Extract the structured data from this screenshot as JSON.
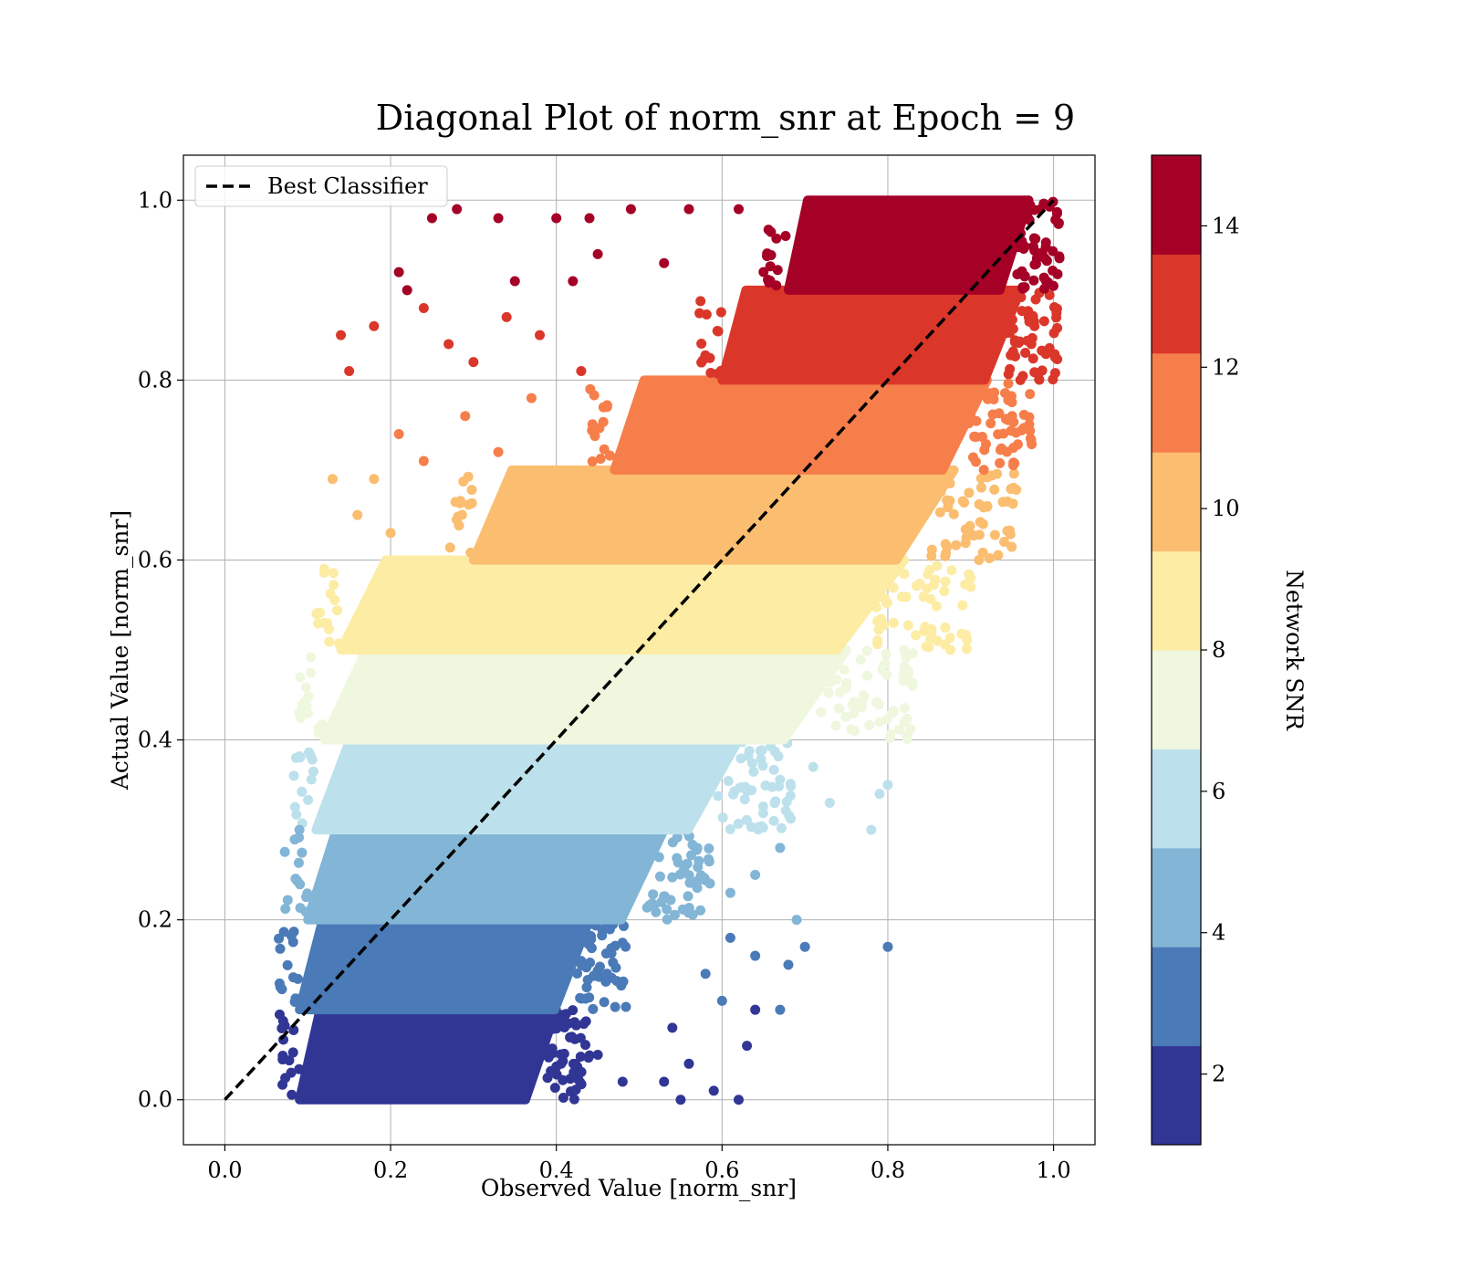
{
  "chart_data": {
    "type": "scatter",
    "title": "Diagonal Plot of norm_snr at Epoch = 9",
    "xlabel": "Observed Value [norm_snr]",
    "ylabel": "Actual Value [norm_snr]",
    "xlim": [
      -0.05,
      1.05
    ],
    "ylim": [
      -0.05,
      1.05
    ],
    "xticks": [
      "0.0",
      "0.2",
      "0.4",
      "0.6",
      "0.8",
      "1.0"
    ],
    "yticks": [
      "0.0",
      "0.2",
      "0.4",
      "0.6",
      "0.8",
      "1.0"
    ],
    "grid": true,
    "legend": {
      "position": "top-left",
      "entries": [
        "Best Classifier"
      ]
    },
    "reference_line": {
      "name": "Best Classifier",
      "style": "dashed",
      "color": "#000000",
      "x": [
        0,
        1
      ],
      "y": [
        0,
        1
      ]
    },
    "colorbar": {
      "label": "Network SNR",
      "range": [
        1,
        15
      ],
      "ticks": [
        "2",
        "4",
        "6",
        "8",
        "10",
        "12",
        "14"
      ],
      "colors": [
        "#313695",
        "#4a7ab7",
        "#82b5d6",
        "#bde1ec",
        "#eff7de",
        "#fdeca4",
        "#fbbd6f",
        "#f67e4b",
        "#da372a",
        "#a50026"
      ]
    },
    "bands": [
      {
        "y_range": [
          0.0,
          0.1
        ],
        "x_range": [
          0.09,
          0.4
        ],
        "color": "#313695"
      },
      {
        "y_range": [
          0.1,
          0.2
        ],
        "x_range": [
          0.09,
          0.44
        ],
        "color": "#4a7ab7"
      },
      {
        "y_range": [
          0.2,
          0.3
        ],
        "x_range": [
          0.1,
          0.53
        ],
        "color": "#82b5d6"
      },
      {
        "y_range": [
          0.3,
          0.4
        ],
        "x_range": [
          0.11,
          0.62
        ],
        "color": "#bde1ec"
      },
      {
        "y_range": [
          0.4,
          0.5
        ],
        "x_range": [
          0.12,
          0.75
        ],
        "color": "#eff7de"
      },
      {
        "y_range": [
          0.5,
          0.6
        ],
        "x_range": [
          0.14,
          0.82
        ],
        "color": "#fdeca4"
      },
      {
        "y_range": [
          0.6,
          0.7
        ],
        "x_range": [
          0.3,
          0.88
        ],
        "color": "#fbbd6f"
      },
      {
        "y_range": [
          0.7,
          0.8
        ],
        "x_range": [
          0.47,
          0.92
        ],
        "color": "#f67e4b"
      },
      {
        "y_range": [
          0.8,
          0.9
        ],
        "x_range": [
          0.6,
          0.96
        ],
        "color": "#da372a"
      },
      {
        "y_range": [
          0.9,
          1.0
        ],
        "x_range": [
          0.68,
          0.97
        ],
        "color": "#a50026"
      }
    ],
    "scatter_points": [
      {
        "x": 0.14,
        "y": 0.85,
        "color": "#da372a"
      },
      {
        "x": 0.18,
        "y": 0.86,
        "color": "#da372a"
      },
      {
        "x": 0.21,
        "y": 0.92,
        "color": "#a50026"
      },
      {
        "x": 0.22,
        "y": 0.9,
        "color": "#a50026"
      },
      {
        "x": 0.25,
        "y": 0.98,
        "color": "#a50026"
      },
      {
        "x": 0.28,
        "y": 0.99,
        "color": "#a50026"
      },
      {
        "x": 0.33,
        "y": 0.98,
        "color": "#a50026"
      },
      {
        "x": 0.35,
        "y": 0.91,
        "color": "#a50026"
      },
      {
        "x": 0.4,
        "y": 0.98,
        "color": "#a50026"
      },
      {
        "x": 0.44,
        "y": 0.98,
        "color": "#a50026"
      },
      {
        "x": 0.42,
        "y": 0.91,
        "color": "#a50026"
      },
      {
        "x": 0.45,
        "y": 0.94,
        "color": "#a50026"
      },
      {
        "x": 0.49,
        "y": 0.99,
        "color": "#a50026"
      },
      {
        "x": 0.53,
        "y": 0.93,
        "color": "#a50026"
      },
      {
        "x": 0.56,
        "y": 0.99,
        "color": "#a50026"
      },
      {
        "x": 0.62,
        "y": 0.99,
        "color": "#a50026"
      },
      {
        "x": 0.15,
        "y": 0.81,
        "color": "#da372a"
      },
      {
        "x": 0.24,
        "y": 0.88,
        "color": "#da372a"
      },
      {
        "x": 0.27,
        "y": 0.84,
        "color": "#da372a"
      },
      {
        "x": 0.3,
        "y": 0.82,
        "color": "#da372a"
      },
      {
        "x": 0.34,
        "y": 0.87,
        "color": "#da372a"
      },
      {
        "x": 0.38,
        "y": 0.85,
        "color": "#da372a"
      },
      {
        "x": 0.43,
        "y": 0.81,
        "color": "#da372a"
      },
      {
        "x": 0.21,
        "y": 0.74,
        "color": "#f67e4b"
      },
      {
        "x": 0.24,
        "y": 0.71,
        "color": "#f67e4b"
      },
      {
        "x": 0.29,
        "y": 0.76,
        "color": "#f67e4b"
      },
      {
        "x": 0.33,
        "y": 0.72,
        "color": "#f67e4b"
      },
      {
        "x": 0.37,
        "y": 0.78,
        "color": "#f67e4b"
      },
      {
        "x": 0.13,
        "y": 0.69,
        "color": "#fbbd6f"
      },
      {
        "x": 0.16,
        "y": 0.65,
        "color": "#fbbd6f"
      },
      {
        "x": 0.18,
        "y": 0.69,
        "color": "#fbbd6f"
      },
      {
        "x": 0.2,
        "y": 0.63,
        "color": "#fbbd6f"
      },
      {
        "x": 0.12,
        "y": 0.59,
        "color": "#fdeca4"
      },
      {
        "x": 0.12,
        "y": 0.53,
        "color": "#fdeca4"
      },
      {
        "x": 0.09,
        "y": 0.43,
        "color": "#eff7de"
      },
      {
        "x": 0.09,
        "y": 0.3,
        "color": "#82b5d6"
      },
      {
        "x": 0.08,
        "y": 0.03,
        "color": "#313695"
      },
      {
        "x": 0.45,
        "y": 0.05,
        "color": "#313695"
      },
      {
        "x": 0.48,
        "y": 0.02,
        "color": "#313695"
      },
      {
        "x": 0.53,
        "y": 0.02,
        "color": "#313695"
      },
      {
        "x": 0.56,
        "y": 0.04,
        "color": "#313695"
      },
      {
        "x": 0.55,
        "y": 0.0,
        "color": "#313695"
      },
      {
        "x": 0.59,
        "y": 0.01,
        "color": "#313695"
      },
      {
        "x": 0.62,
        "y": 0.0,
        "color": "#313695"
      },
      {
        "x": 0.63,
        "y": 0.06,
        "color": "#313695"
      },
      {
        "x": 0.54,
        "y": 0.08,
        "color": "#313695"
      },
      {
        "x": 0.64,
        "y": 0.1,
        "color": "#313695"
      },
      {
        "x": 0.58,
        "y": 0.14,
        "color": "#4a7ab7"
      },
      {
        "x": 0.6,
        "y": 0.11,
        "color": "#4a7ab7"
      },
      {
        "x": 0.64,
        "y": 0.16,
        "color": "#4a7ab7"
      },
      {
        "x": 0.67,
        "y": 0.1,
        "color": "#4a7ab7"
      },
      {
        "x": 0.68,
        "y": 0.15,
        "color": "#4a7ab7"
      },
      {
        "x": 0.7,
        "y": 0.17,
        "color": "#4a7ab7"
      },
      {
        "x": 0.8,
        "y": 0.17,
        "color": "#4a7ab7"
      },
      {
        "x": 0.61,
        "y": 0.18,
        "color": "#4a7ab7"
      },
      {
        "x": 0.61,
        "y": 0.23,
        "color": "#82b5d6"
      },
      {
        "x": 0.64,
        "y": 0.25,
        "color": "#82b5d6"
      },
      {
        "x": 0.69,
        "y": 0.2,
        "color": "#82b5d6"
      },
      {
        "x": 0.67,
        "y": 0.28,
        "color": "#82b5d6"
      },
      {
        "x": 0.71,
        "y": 0.37,
        "color": "#bde1ec"
      },
      {
        "x": 0.73,
        "y": 0.33,
        "color": "#bde1ec"
      },
      {
        "x": 0.78,
        "y": 0.3,
        "color": "#bde1ec"
      },
      {
        "x": 0.79,
        "y": 0.34,
        "color": "#bde1ec"
      },
      {
        "x": 0.8,
        "y": 0.35,
        "color": "#bde1ec"
      },
      {
        "x": 0.76,
        "y": 0.41,
        "color": "#eff7de"
      },
      {
        "x": 0.79,
        "y": 0.42,
        "color": "#eff7de"
      },
      {
        "x": 0.82,
        "y": 0.42,
        "color": "#eff7de"
      },
      {
        "x": 0.83,
        "y": 0.46,
        "color": "#eff7de"
      },
      {
        "x": 0.86,
        "y": 0.51,
        "color": "#fdeca4"
      },
      {
        "x": 0.9,
        "y": 0.57,
        "color": "#fdeca4"
      },
      {
        "x": 0.9,
        "y": 0.58,
        "color": "#fdeca4"
      },
      {
        "x": 0.91,
        "y": 0.6,
        "color": "#fbbd6f"
      },
      {
        "x": 0.92,
        "y": 0.66,
        "color": "#fbbd6f"
      },
      {
        "x": 0.95,
        "y": 0.76,
        "color": "#f67e4b"
      },
      {
        "x": 0.96,
        "y": 0.8,
        "color": "#da372a"
      },
      {
        "x": 0.97,
        "y": 0.87,
        "color": "#da372a"
      }
    ]
  }
}
